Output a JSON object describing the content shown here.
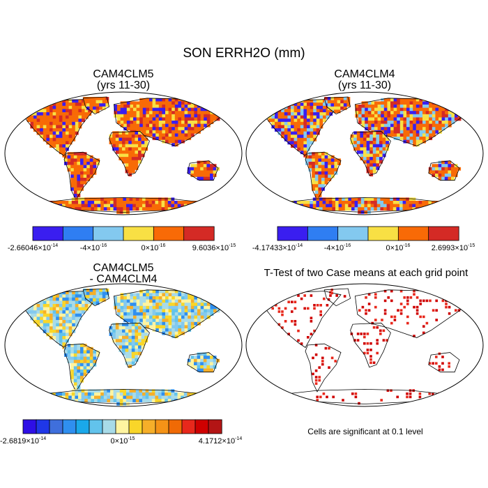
{
  "figure": {
    "title": "SON ERRH2O (mm)"
  },
  "panels": [
    {
      "title_line1": "CAM4CLM5",
      "title_line2": "(yrs 11-30)",
      "colorbar": {
        "colors": [
          "#3a1ef0",
          "#2f7ef2",
          "#83c9ef",
          "#f8e044",
          "#f86a06",
          "#d42a25"
        ],
        "labels": [
          {
            "mant": "-2.66046",
            "exp": "-14"
          },
          {
            "mant": "-4",
            "exp": "-16"
          },
          {
            "mant": "0",
            "exp": "-16"
          },
          {
            "mant": "9.6036",
            "exp": "-15"
          }
        ]
      }
    },
    {
      "title_line1": "CAM4CLM4",
      "title_line2": "(yrs 11-30)",
      "colorbar": {
        "colors": [
          "#3a1ef0",
          "#2f7ef2",
          "#83c9ef",
          "#f8e044",
          "#f86a06",
          "#d42a25"
        ],
        "labels": [
          {
            "mant": "-4.17433",
            "exp": "-14"
          },
          {
            "mant": "-4",
            "exp": "-16"
          },
          {
            "mant": "0",
            "exp": "-16"
          },
          {
            "mant": "2.6993",
            "exp": "-15"
          }
        ]
      }
    },
    {
      "title_line1": "CAM4CLM5",
      "title_line2": "- CAM4CLM4",
      "colorbar": {
        "colors": [
          "#2e0fe6",
          "#1f37e8",
          "#3f6fdc",
          "#2f8ff0",
          "#1aa8ea",
          "#62c3ec",
          "#a8dbe8",
          "#fff4a0",
          "#f9d629",
          "#f6af29",
          "#f59317",
          "#f06a05",
          "#e8281c",
          "#cf0000",
          "#b31515"
        ],
        "labels": [
          {
            "mant": "-2.6819",
            "exp": "-14"
          },
          {
            "mant": "0",
            "exp": "-15"
          },
          {
            "mant": "4.1712",
            "exp": "-14"
          }
        ]
      }
    },
    {
      "title_line1": "T-Test of two Case means at each grid point",
      "footnote": "Cells are significant at 0.1 level"
    }
  ],
  "map_palettes": {
    "p1": [
      "#f86a06",
      "#f8e044",
      "#f86a06",
      "#d42a25",
      "#3a1ef0",
      "#f86a06"
    ],
    "p2": [
      "#f86a06",
      "#f8e044",
      "#3a1ef0",
      "#d42a25",
      "#83c9ef",
      "#f86a06"
    ],
    "p3": [
      "#a8dbe8",
      "#fff4a0",
      "#83c9ef",
      "#f9d629",
      "#f6af29",
      "#62c3ec",
      "#2f8ff0"
    ],
    "p4": [
      "#e8281c",
      "#cf0000"
    ]
  }
}
